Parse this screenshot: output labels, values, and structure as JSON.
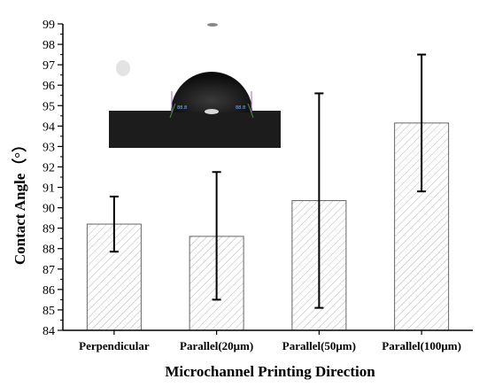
{
  "chart_data": {
    "type": "bar",
    "title": "",
    "xlabel": "Microchannel Printing Direction",
    "ylabel": "Contact Angle（°）",
    "categories": [
      "Perpendicular",
      "Parallel(20μm)",
      "Parallel(50μm)",
      "Parallel(100μm)"
    ],
    "values": [
      89.2,
      88.6,
      90.35,
      94.15
    ],
    "error_low": [
      87.85,
      85.5,
      85.1,
      90.8
    ],
    "error_high": [
      90.55,
      91.75,
      95.6,
      97.5
    ],
    "ylim": [
      84,
      99
    ],
    "yticks": [
      84,
      85,
      86,
      87,
      88,
      89,
      90,
      91,
      92,
      93,
      94,
      95,
      96,
      97,
      98,
      99
    ],
    "bar_fill": "hatched",
    "grid": false,
    "legend": "none",
    "colors": {
      "bar_stroke": "#666666",
      "hatch": "#b3b3b3",
      "axis": "#000000",
      "error_bar": "#000000"
    },
    "inset": {
      "type": "photo",
      "description_icon": "water-droplet-photo",
      "annotations": [
        "88.8",
        "88.8"
      ]
    }
  }
}
